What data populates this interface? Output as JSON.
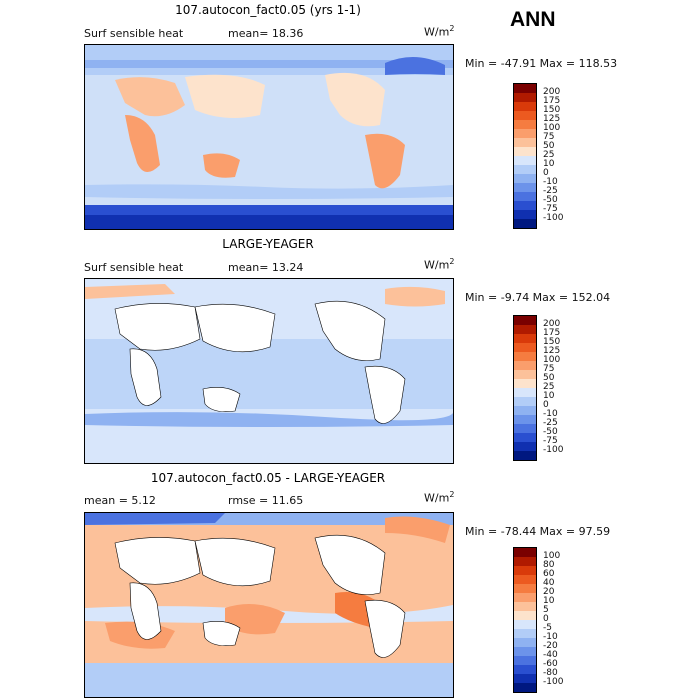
{
  "header": {
    "season": "ANN"
  },
  "panels": [
    {
      "title": "107.autocon_fact0.05 (yrs 1-1)",
      "left": "Surf sensible heat",
      "mid": "mean=  18.36",
      "units": "W/m",
      "units_sup": "2",
      "minmax": "Min = -47.91 Max = 118.53",
      "colorbar": {
        "labels": [
          "200",
          "175",
          "150",
          "125",
          "100",
          "75",
          "50",
          "25",
          "10",
          "0",
          "-10",
          "-25",
          "-50",
          "-75",
          "-100"
        ],
        "colors": [
          "#7a0000",
          "#b01a00",
          "#d93a0a",
          "#ec5a20",
          "#f57c40",
          "#fa9e6c",
          "#fcc19a",
          "#fde3cc",
          "#d8e6fb",
          "#b2cdf7",
          "#8fb2f1",
          "#6c93ea",
          "#4b72e0",
          "#2a4fd0",
          "#1030b0",
          "#001880"
        ]
      }
    },
    {
      "title": "LARGE-YEAGER",
      "left": "Surf sensible heat",
      "mid": "mean=  13.24",
      "units": "W/m",
      "units_sup": "2",
      "minmax": "Min =  -9.74 Max = 152.04",
      "colorbar": {
        "labels": [
          "200",
          "175",
          "150",
          "125",
          "100",
          "75",
          "50",
          "25",
          "10",
          "0",
          "-10",
          "-25",
          "-50",
          "-75",
          "-100"
        ],
        "colors": [
          "#7a0000",
          "#b01a00",
          "#d93a0a",
          "#ec5a20",
          "#f57c40",
          "#fa9e6c",
          "#fcc19a",
          "#fde3cc",
          "#d8e6fb",
          "#b2cdf7",
          "#8fb2f1",
          "#6c93ea",
          "#4b72e0",
          "#2a4fd0",
          "#1030b0",
          "#001880"
        ]
      }
    },
    {
      "title": "107.autocon_fact0.05 - LARGE-YEAGER",
      "left": "mean =   5.12",
      "mid": "rmse =  11.65",
      "units": "W/m",
      "units_sup": "2",
      "minmax": "Min = -78.44 Max =  97.59",
      "colorbar": {
        "labels": [
          "100",
          "80",
          "60",
          "40",
          "20",
          "10",
          "5",
          "0",
          "-5",
          "-10",
          "-20",
          "-40",
          "-60",
          "-80",
          "-100"
        ],
        "colors": [
          "#7a0000",
          "#b01a00",
          "#d93a0a",
          "#ec5a20",
          "#f57c40",
          "#fa9e6c",
          "#fcc19a",
          "#fde3cc",
          "#d8e6fb",
          "#b2cdf7",
          "#8fb2f1",
          "#6c93ea",
          "#4b72e0",
          "#2a4fd0",
          "#1030b0",
          "#001880"
        ]
      }
    }
  ],
  "chart_data": [
    {
      "type": "heatmap",
      "title": "107.autocon_fact0.05 (yrs 1-1)",
      "variable": "Surf sensible heat",
      "units": "W/m2",
      "mean": 18.36,
      "min": -47.91,
      "max": 118.53,
      "levels": [
        -100,
        -75,
        -50,
        -25,
        -10,
        0,
        10,
        25,
        50,
        75,
        100,
        125,
        150,
        175,
        200
      ]
    },
    {
      "type": "heatmap",
      "title": "LARGE-YEAGER",
      "variable": "Surf sensible heat",
      "units": "W/m2",
      "mean": 13.24,
      "min": -9.74,
      "max": 152.04,
      "levels": [
        -100,
        -75,
        -50,
        -25,
        -10,
        0,
        10,
        25,
        50,
        75,
        100,
        125,
        150,
        175,
        200
      ]
    },
    {
      "type": "heatmap",
      "title": "107.autocon_fact0.05 - LARGE-YEAGER",
      "units": "W/m2",
      "mean": 5.12,
      "rmse": 11.65,
      "min": -78.44,
      "max": 97.59,
      "levels": [
        -100,
        -80,
        -60,
        -40,
        -20,
        -10,
        -5,
        0,
        5,
        10,
        20,
        40,
        60,
        80,
        100
      ]
    }
  ]
}
